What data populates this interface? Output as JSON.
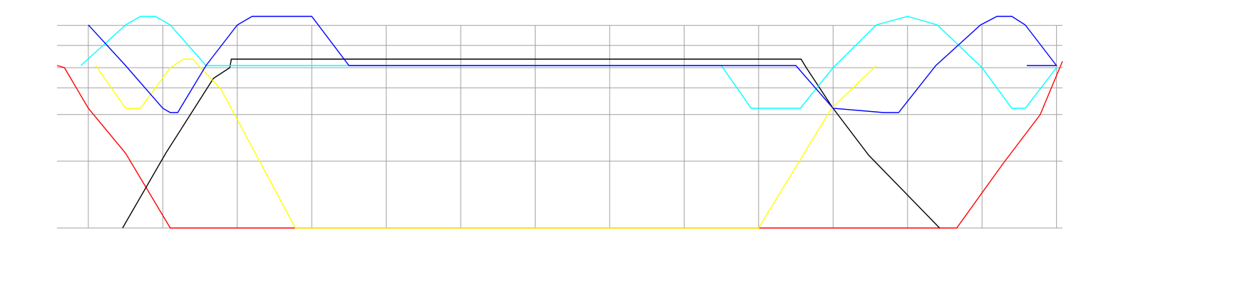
{
  "chart_data": {
    "type": "line",
    "title": "",
    "xlabel": "",
    "ylabel": "",
    "xlim": [
      0,
      13.5
    ],
    "ylim": [
      0,
      10
    ],
    "grid": true,
    "x_gridlines": [
      0.42,
      1.42,
      2.42,
      3.42,
      4.42,
      5.42,
      6.42,
      7.42,
      8.42,
      9.42,
      10.42,
      11.42,
      12.42,
      13.42
    ],
    "y_gridlines": [
      3.13,
      5.31,
      6.56,
      7.5,
      8.54,
      9.48
    ],
    "series": [
      {
        "color": "#ff0000",
        "x": [
          0,
          0.1,
          0.42,
          0.92,
          1.52,
          12.08,
          12.7,
          13.2,
          13.5
        ],
        "y": [
          7.6,
          7.5,
          5.6,
          3.5,
          0,
          0,
          3.0,
          5.3,
          7.8
        ]
      },
      {
        "color": "#000000",
        "x": [
          0.88,
          1.46,
          2.1,
          2.32,
          2.34,
          9.99,
          10.06,
          10.42,
          10.9,
          11.85
        ],
        "y": [
          0,
          3.5,
          7.0,
          7.5,
          7.9,
          7.9,
          7.5,
          5.6,
          3.4,
          0
        ]
      },
      {
        "color": "#ffff00",
        "x": [
          0.52,
          0.92,
          1.12,
          1.52,
          1.7,
          1.82,
          2.2,
          3.2,
          9.42,
          10.4,
          11.0
        ],
        "y": [
          7.6,
          5.6,
          5.6,
          7.5,
          7.9,
          7.9,
          6.5,
          0,
          0,
          5.6,
          7.6
        ]
      },
      {
        "color": "#00ffff",
        "x": [
          0.32,
          0.92,
          1.12,
          1.32,
          1.52,
          2.0,
          3.92,
          8.92,
          9.32,
          9.98,
          10.42,
          11.0,
          11.42,
          11.82,
          12.42,
          12.82,
          13.0,
          13.42
        ],
        "y": [
          7.6,
          9.5,
          9.9,
          9.9,
          9.5,
          7.6,
          7.6,
          7.6,
          5.6,
          5.6,
          7.5,
          9.5,
          9.9,
          9.5,
          7.5,
          5.6,
          5.6,
          7.5
        ]
      },
      {
        "color": "#0000ff",
        "x": [
          0.42,
          0.92,
          1.42,
          1.52,
          1.62,
          2.0,
          2.42,
          2.62,
          3.42,
          3.92,
          8.92,
          9.42,
          9.92,
          10.42,
          11.1,
          11.3,
          11.8,
          12.4,
          12.62,
          12.82,
          13.0,
          13.42,
          13.02
        ],
        "y": [
          9.5,
          7.6,
          5.6,
          5.4,
          5.4,
          7.6,
          9.5,
          9.9,
          9.9,
          7.6,
          7.6,
          7.6,
          7.6,
          5.6,
          5.4,
          5.4,
          7.6,
          9.5,
          9.9,
          9.9,
          9.5,
          7.6,
          7.6
        ]
      }
    ]
  }
}
